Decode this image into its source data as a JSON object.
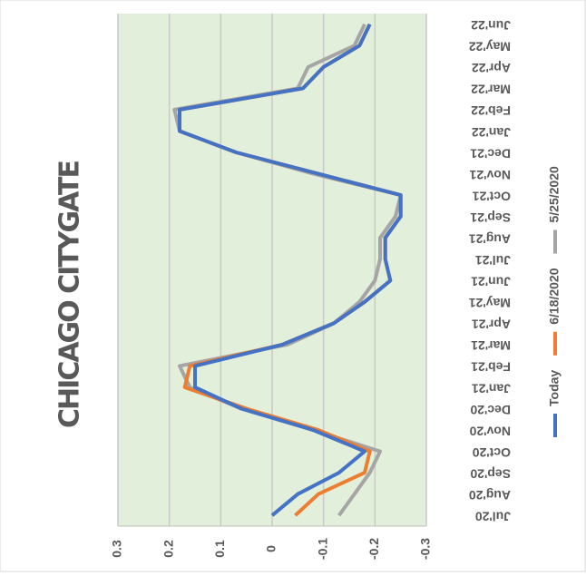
{
  "chart_data": {
    "type": "line",
    "title": "CHICAGO CITYGATE",
    "categories": [
      "Jul'20",
      "Aug'20",
      "Sep'20",
      "Oct'20",
      "Nov'20",
      "Dec'20",
      "Jan'21",
      "Feb'21",
      "Mar'21",
      "Apr'21",
      "May'21",
      "Jun'21",
      "Jul'21",
      "Aug'21",
      "Sep'21",
      "Oct'21",
      "Nov'21",
      "Dec'21",
      "Jan'22",
      "Feb'22",
      "Mar'22",
      "Apr'22",
      "May'22",
      "Jun'22"
    ],
    "series": [
      {
        "name": "Today",
        "color": "#4472c4",
        "values": [
          0,
          -0.05,
          -0.13,
          -0.18,
          -0.08,
          0.06,
          0.15,
          0.15,
          -0.02,
          -0.12,
          -0.18,
          -0.23,
          -0.22,
          -0.22,
          -0.25,
          -0.25,
          -0.09,
          0.07,
          0.18,
          0.18,
          -0.06,
          -0.1,
          -0.17,
          -0.19
        ]
      },
      {
        "name": "6/18/2020",
        "color": "#ed7d31",
        "values": [
          -0.045,
          -0.09,
          -0.18,
          -0.19,
          -0.09,
          0.05,
          0.17,
          0.16,
          -0.02,
          -0.12,
          -0.18,
          -0.23,
          -0.22,
          -0.22,
          -0.25,
          -0.25,
          -0.09,
          0.07,
          0.18,
          0.18,
          -0.06,
          -0.1,
          -0.17,
          -0.19
        ]
      },
      {
        "name": "5/25/2020",
        "color": "#a5a5a5",
        "values": [
          -0.13,
          -0.16,
          -0.19,
          -0.21,
          -0.08,
          0.06,
          0.16,
          0.18,
          -0.03,
          -0.12,
          -0.17,
          -0.2,
          -0.21,
          -0.21,
          -0.24,
          -0.25,
          -0.08,
          0.07,
          0.18,
          0.19,
          -0.05,
          -0.07,
          -0.16,
          -0.18
        ]
      }
    ],
    "ylim": [
      -0.3,
      0.3
    ],
    "yticks": [
      0.3,
      0.2,
      0.1,
      0,
      -0.1,
      -0.2,
      -0.3
    ],
    "grid": true,
    "legend": "right",
    "background": "#e2efda"
  }
}
